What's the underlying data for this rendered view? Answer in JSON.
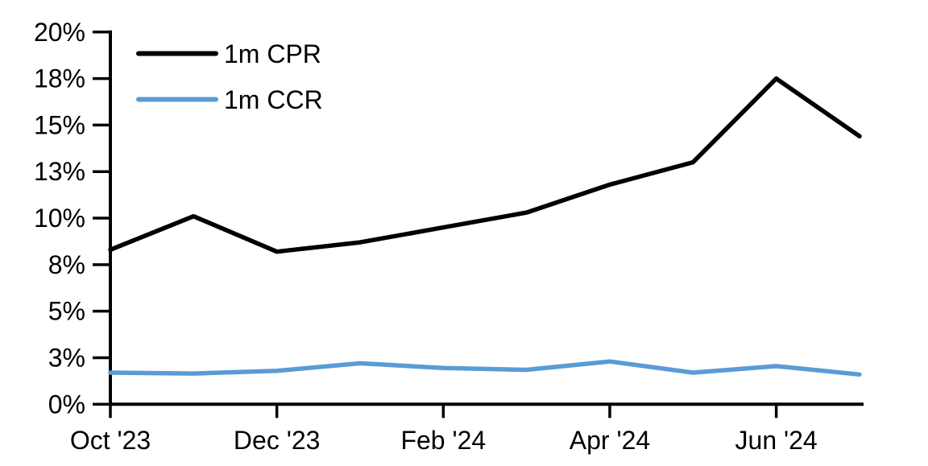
{
  "chart_data": {
    "type": "line",
    "title": "",
    "xlabel": "",
    "ylabel": "",
    "grid": false,
    "legend_position": "top-left",
    "x": [
      "Oct '23",
      "Nov '23",
      "Dec '23",
      "Jan '24",
      "Feb '24",
      "Mar '24",
      "Apr '24",
      "May '24",
      "Jun '24",
      "Jul '24"
    ],
    "series": [
      {
        "name": "1m CPR",
        "color": "#000000",
        "values": [
          8.3,
          10.1,
          8.2,
          8.7,
          9.5,
          10.3,
          11.8,
          13.0,
          17.5,
          14.4
        ]
      },
      {
        "name": "1m CCR",
        "color": "#5B9BD5",
        "values": [
          1.7,
          1.65,
          1.8,
          2.2,
          1.95,
          1.85,
          2.3,
          1.7,
          2.05,
          1.6
        ]
      }
    ],
    "ylim": [
      0,
      20
    ],
    "y_ticks": [
      {
        "value": 0,
        "label": "0%"
      },
      {
        "value": 2.5,
        "label": "3%"
      },
      {
        "value": 5,
        "label": "5%"
      },
      {
        "value": 7.5,
        "label": "8%"
      },
      {
        "value": 10,
        "label": "10%"
      },
      {
        "value": 12.5,
        "label": "13%"
      },
      {
        "value": 15,
        "label": "15%"
      },
      {
        "value": 17.5,
        "label": "18%"
      },
      {
        "value": 20,
        "label": "20%"
      }
    ],
    "x_tick_labels": [
      {
        "index": 0,
        "label": "Oct '23"
      },
      {
        "index": 2,
        "label": "Dec '23"
      },
      {
        "index": 4,
        "label": "Feb '24"
      },
      {
        "index": 6,
        "label": "Apr '24"
      },
      {
        "index": 8,
        "label": "Jun '24"
      }
    ]
  },
  "legend": {
    "items": [
      {
        "label": "1m CPR",
        "color": "#000000"
      },
      {
        "label": "1m CCR",
        "color": "#5B9BD5"
      }
    ]
  }
}
